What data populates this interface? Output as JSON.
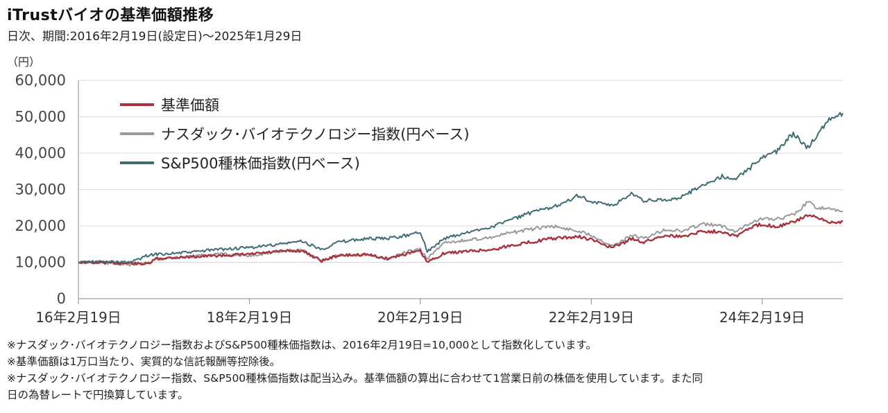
{
  "header": {
    "title": "iTrustバイオの基準価額推移",
    "subtitle": "日次、期間:2016年2月19日(設定日)～2025年1月29日"
  },
  "notes": [
    "※ナスダック･バイオテクノロジー指数およびS&P500種株価指数は、2016年2月19日=10,000として指数化しています。",
    "※基準価額は1万口当たり、実質的な信託報酬等控除後。",
    "※ナスダック･バイオテクノロジー指数、S&P500種株価指数は配当込み。基準価額の算出に合わせて1営業日前の株価を使用しています。また同",
    "日の為替レートで円換算しています。"
  ],
  "chart_data": {
    "type": "line",
    "ylabel": "（円）",
    "ylim": [
      0,
      60000
    ],
    "yticks": [
      0,
      10000,
      20000,
      30000,
      40000,
      50000,
      60000
    ],
    "ytick_labels": [
      "0",
      "10,000",
      "20,000",
      "30,000",
      "40,000",
      "50,000",
      "60,000"
    ],
    "xlim": [
      "2016-02-19",
      "2025-01-29"
    ],
    "xticks": [
      "2016-02-19",
      "2018-02-19",
      "2020-02-19",
      "2022-02-19",
      "2024-02-19"
    ],
    "xtick_labels": [
      "16年2月19日",
      "18年2月19日",
      "20年2月19日",
      "22年2月19日",
      "24年2月19日"
    ],
    "grid": "horizontal",
    "legend_position": "top-left",
    "series": [
      {
        "name": "基準価額",
        "color": "#a8323a",
        "points": [
          [
            "2016-02-19",
            10000
          ],
          [
            "2016-06-01",
            9900
          ],
          [
            "2016-10-01",
            9700
          ],
          [
            "2016-12-15",
            9500
          ],
          [
            "2017-01-15",
            11000
          ],
          [
            "2017-06-01",
            11500
          ],
          [
            "2017-10-01",
            11800
          ],
          [
            "2018-02-19",
            12200
          ],
          [
            "2018-07-01",
            13000
          ],
          [
            "2018-10-01",
            13200
          ],
          [
            "2018-12-25",
            10400
          ],
          [
            "2019-03-01",
            11800
          ],
          [
            "2019-07-01",
            12200
          ],
          [
            "2019-10-01",
            11000
          ],
          [
            "2019-12-31",
            12500
          ],
          [
            "2020-02-19",
            13000
          ],
          [
            "2020-03-20",
            10000
          ],
          [
            "2020-06-01",
            12500
          ],
          [
            "2020-09-01",
            13000
          ],
          [
            "2020-12-31",
            13500
          ],
          [
            "2021-03-01",
            14500
          ],
          [
            "2021-06-01",
            15500
          ],
          [
            "2021-09-01",
            16500
          ],
          [
            "2021-12-31",
            17000
          ],
          [
            "2022-02-19",
            16200
          ],
          [
            "2022-05-20",
            14000
          ],
          [
            "2022-08-15",
            16500
          ],
          [
            "2022-10-01",
            15500
          ],
          [
            "2022-12-31",
            17500
          ],
          [
            "2023-03-15",
            17000
          ],
          [
            "2023-06-01",
            18500
          ],
          [
            "2023-09-01",
            18500
          ],
          [
            "2023-10-30",
            17200
          ],
          [
            "2023-12-31",
            19500
          ],
          [
            "2024-02-19",
            20500
          ],
          [
            "2024-04-20",
            19800
          ],
          [
            "2024-07-01",
            21000
          ],
          [
            "2024-09-01",
            23000
          ],
          [
            "2024-10-15",
            22000
          ],
          [
            "2024-12-01",
            21000
          ],
          [
            "2025-01-29",
            21200
          ]
        ]
      },
      {
        "name": "ナスダック･バイオテクノロジー指数(円ベース)",
        "color": "#999999",
        "points": [
          [
            "2016-02-19",
            10000
          ],
          [
            "2016-06-01",
            9800
          ],
          [
            "2016-10-01",
            9300
          ],
          [
            "2016-12-15",
            9800
          ],
          [
            "2017-01-15",
            10800
          ],
          [
            "2017-06-01",
            11500
          ],
          [
            "2017-10-01",
            12300
          ],
          [
            "2018-02-19",
            11800
          ],
          [
            "2018-07-01",
            13000
          ],
          [
            "2018-10-01",
            13500
          ],
          [
            "2018-12-25",
            10200
          ],
          [
            "2019-03-01",
            12000
          ],
          [
            "2019-07-01",
            12000
          ],
          [
            "2019-10-01",
            11000
          ],
          [
            "2019-12-31",
            13000
          ],
          [
            "2020-02-19",
            13500
          ],
          [
            "2020-03-20",
            11000
          ],
          [
            "2020-06-01",
            15500
          ],
          [
            "2020-09-01",
            16000
          ],
          [
            "2020-12-31",
            17000
          ],
          [
            "2021-03-01",
            18000
          ],
          [
            "2021-06-01",
            19000
          ],
          [
            "2021-09-01",
            20000
          ],
          [
            "2021-12-31",
            18500
          ],
          [
            "2022-02-19",
            17500
          ],
          [
            "2022-05-20",
            14500
          ],
          [
            "2022-08-15",
            17500
          ],
          [
            "2022-10-01",
            16500
          ],
          [
            "2022-12-31",
            19000
          ],
          [
            "2023-03-15",
            18500
          ],
          [
            "2023-06-01",
            20500
          ],
          [
            "2023-09-01",
            20000
          ],
          [
            "2023-10-30",
            18500
          ],
          [
            "2023-12-31",
            21000
          ],
          [
            "2024-02-19",
            22000
          ],
          [
            "2024-04-20",
            21800
          ],
          [
            "2024-07-01",
            23000
          ],
          [
            "2024-09-01",
            26500
          ],
          [
            "2024-10-15",
            25000
          ],
          [
            "2024-12-01",
            24500
          ],
          [
            "2025-01-29",
            24000
          ]
        ]
      },
      {
        "name": "S&P500種株価指数(円ベース)",
        "color": "#3d6b73",
        "points": [
          [
            "2016-02-19",
            10000
          ],
          [
            "2016-06-01",
            10200
          ],
          [
            "2016-10-01",
            10000
          ],
          [
            "2016-12-15",
            12000
          ],
          [
            "2017-01-15",
            12200
          ],
          [
            "2017-06-01",
            12700
          ],
          [
            "2017-10-01",
            13500
          ],
          [
            "2018-02-19",
            14000
          ],
          [
            "2018-07-01",
            15000
          ],
          [
            "2018-10-01",
            15800
          ],
          [
            "2018-12-25",
            13500
          ],
          [
            "2019-03-01",
            15500
          ],
          [
            "2019-07-01",
            16500
          ],
          [
            "2019-10-01",
            16500
          ],
          [
            "2019-12-31",
            17500
          ],
          [
            "2020-02-19",
            18500
          ],
          [
            "2020-03-20",
            13000
          ],
          [
            "2020-06-01",
            16500
          ],
          [
            "2020-09-01",
            18000
          ],
          [
            "2020-12-31",
            20000
          ],
          [
            "2021-03-01",
            21500
          ],
          [
            "2021-06-01",
            23500
          ],
          [
            "2021-09-01",
            25000
          ],
          [
            "2021-12-31",
            28500
          ],
          [
            "2022-02-19",
            26500
          ],
          [
            "2022-05-20",
            25500
          ],
          [
            "2022-08-15",
            29000
          ],
          [
            "2022-10-01",
            27000
          ],
          [
            "2022-12-31",
            27000
          ],
          [
            "2023-03-15",
            28000
          ],
          [
            "2023-06-01",
            31000
          ],
          [
            "2023-09-01",
            33500
          ],
          [
            "2023-10-30",
            33000
          ],
          [
            "2023-12-31",
            36000
          ],
          [
            "2024-02-19",
            39000
          ],
          [
            "2024-04-20",
            40500
          ],
          [
            "2024-07-01",
            45500
          ],
          [
            "2024-09-01",
            41500
          ],
          [
            "2024-10-15",
            45000
          ],
          [
            "2024-12-01",
            49500
          ],
          [
            "2025-01-29",
            51000
          ]
        ]
      }
    ]
  }
}
